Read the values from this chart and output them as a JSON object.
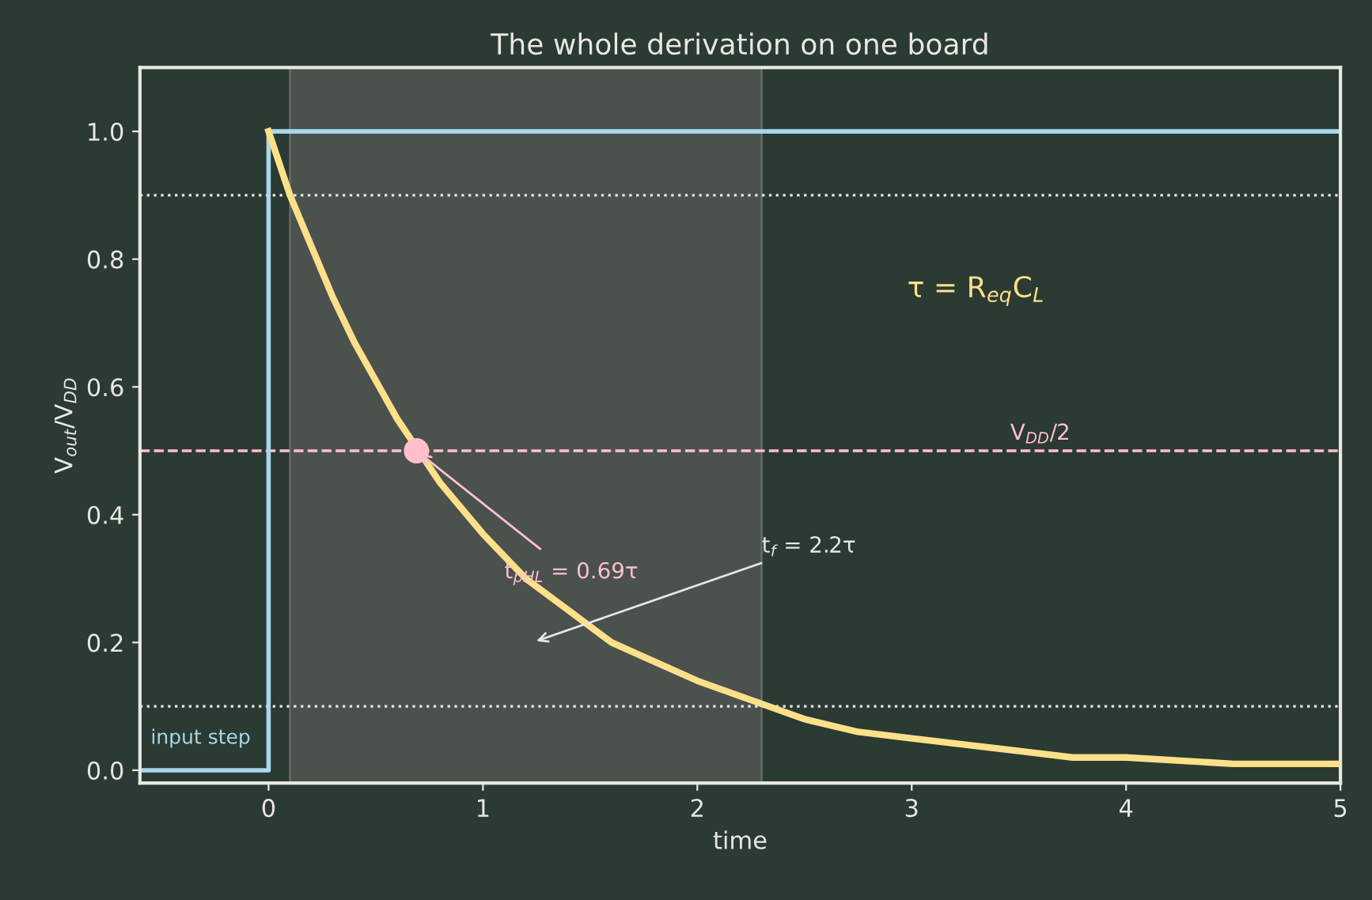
{
  "chart_data": {
    "type": "line",
    "title": "The whole derivation on one board",
    "xlabel": "time",
    "ylabel": "V$_{out}$/V$_{DD}$",
    "xlim": [
      -0.6,
      5
    ],
    "xticks": [
      0,
      1,
      2,
      3,
      4,
      5
    ],
    "ylim": [
      -0.02,
      1.1
    ],
    "yticks": [
      {
        "value": 0,
        "label": "0.0"
      },
      {
        "value": 0.2,
        "label": "0.2"
      },
      {
        "value": 0.4,
        "label": "0.4"
      },
      {
        "value": 0.6,
        "label": "0.6"
      },
      {
        "value": 0.8,
        "label": "0.8"
      },
      {
        "value": 1.0,
        "label": "1.0"
      }
    ],
    "grid": false,
    "series": [
      {
        "type": "step",
        "color": "#a8d8ea",
        "x": [
          -0.6,
          0,
          5
        ],
        "values": [
          0,
          1,
          1
        ]
      },
      {
        "color": "#ffe08a",
        "x": [
          0,
          0.1,
          0.2,
          0.3,
          0.4,
          0.5,
          0.6,
          0.7,
          0.8,
          0.9,
          1,
          1.2,
          1.4,
          1.6,
          1.8,
          2,
          2.25,
          2.5,
          2.75,
          3,
          3.25,
          3.5,
          3.75,
          4,
          4.5,
          5
        ],
        "values": [
          1,
          0.9,
          0.82,
          0.74,
          0.67,
          0.61,
          0.55,
          0.5,
          0.45,
          0.41,
          0.37,
          0.3,
          0.25,
          0.2,
          0.17,
          0.14,
          0.11,
          0.08,
          0.06,
          0.05,
          0.04,
          0.03,
          0.02,
          0.02,
          0.01,
          0.01
        ]
      },
      {
        "type": "scatter",
        "color": "#ffc0cb",
        "marker": "circle",
        "x": [
          0.69
        ],
        "values": [
          0.5
        ]
      }
    ],
    "ref_lines": [
      {
        "axis": "y",
        "value": 0.9,
        "color": "#e8e8e0",
        "line_style": "dotted"
      },
      {
        "axis": "y",
        "value": 0.1,
        "color": "#e8e8e0",
        "line_style": "dotted"
      },
      {
        "axis": "y",
        "value": 0.5,
        "color": "#ffc0cb",
        "line_style": "dashed",
        "label": "V$_{DD}$/2"
      }
    ],
    "bands": [
      {
        "axis": "x",
        "from": 0.1,
        "to": 2.3,
        "color": "#4b514d"
      }
    ],
    "annotations": [
      {
        "text": "t$_{pHL}$ = 0.69τ",
        "x": 0.69,
        "y": 0.5
      },
      "t$_{f}$ = 2.2τ",
      "τ = R$_{eq}$C$_{L}$",
      "input step"
    ]
  }
}
